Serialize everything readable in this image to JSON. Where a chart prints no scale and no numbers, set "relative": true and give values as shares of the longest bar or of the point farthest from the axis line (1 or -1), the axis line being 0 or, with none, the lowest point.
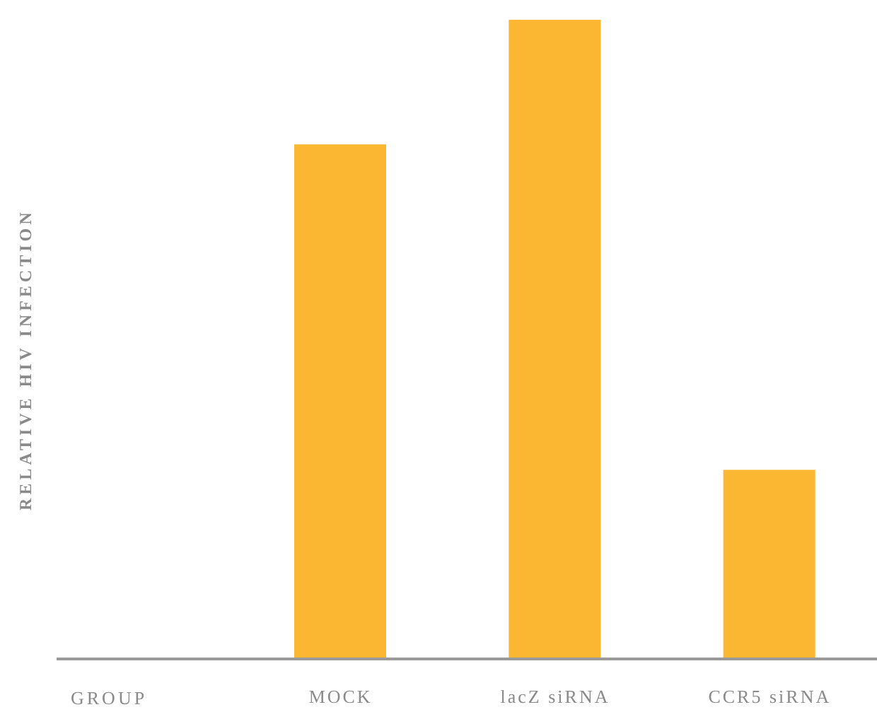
{
  "chart_data": {
    "type": "bar",
    "relative": true,
    "xlabel": "GROUP",
    "ylabel": "RELATIVE HIV INFECTION",
    "categories": [
      "MOCK",
      "lacZ siRNA",
      "CCR5 siRNA"
    ],
    "series": [
      {
        "color": "#fbb731",
        "values": [
          0.805,
          1,
          0.296
        ]
      }
    ],
    "grid": false,
    "legend": false
  }
}
